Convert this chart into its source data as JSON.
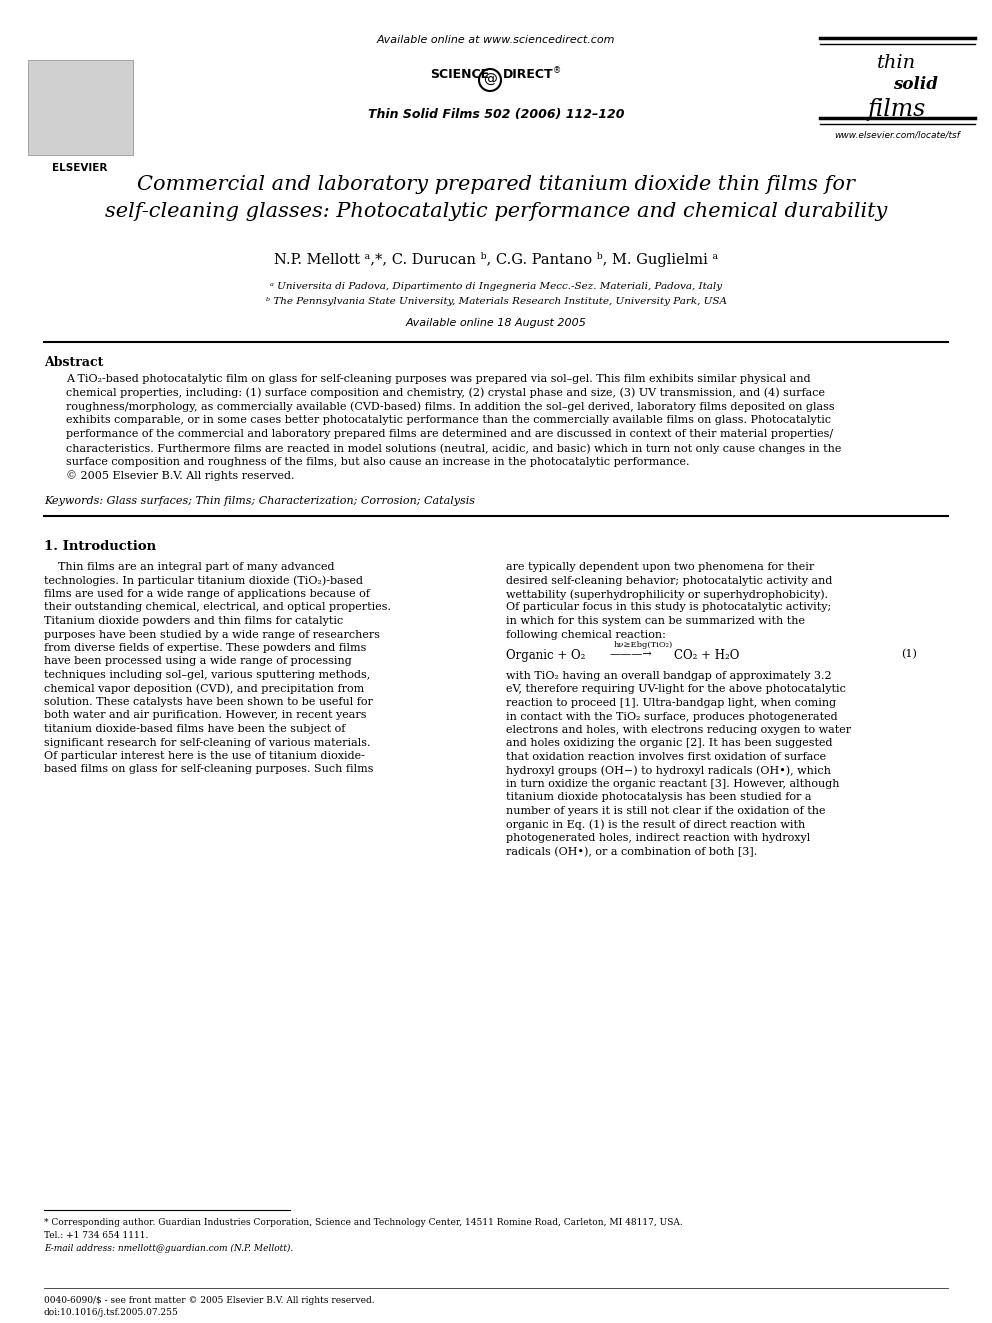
{
  "bg_color": "#ffffff",
  "header_url": "Available online at www.sciencedirect.com",
  "journal_ref": "Thin Solid Films 502 (2006) 112–120",
  "title_line1": "Commercial and laboratory prepared titanium dioxide thin films for",
  "title_line2": "self-cleaning glasses: Photocatalytic performance and chemical durability",
  "authors": "N.P. Mellott ᵃ,*, C. Durucan ᵇ, C.G. Pantano ᵇ, M. Guglielmi ᵃ",
  "affil1": "ᵃ Universita di Padova, Dipartimento di Ingegneria Mecc.-Sez. Materiali, Padova, Italy",
  "affil2": "ᵇ The Pennsylvania State University, Materials Research Institute, University Park, USA",
  "available_online": "Available online 18 August 2005",
  "abstract_title": "Abstract",
  "abstract_lines": [
    "A TiO₂-based photocatalytic film on glass for self-cleaning purposes was prepared via sol–gel. This film exhibits similar physical and",
    "chemical properties, including: (1) surface composition and chemistry, (2) crystal phase and size, (3) UV transmission, and (4) surface",
    "roughness/morphology, as commercially available (CVD-based) films. In addition the sol–gel derived, laboratory films deposited on glass",
    "exhibits comparable, or in some cases better photocatalytic performance than the commercially available films on glass. Photocatalytic",
    "performance of the commercial and laboratory prepared films are determined and are discussed in context of their material properties/",
    "characteristics. Furthermore films are reacted in model solutions (neutral, acidic, and basic) which in turn not only cause changes in the",
    "surface composition and roughness of the films, but also cause an increase in the photocatalytic performance.",
    "© 2005 Elsevier B.V. All rights reserved."
  ],
  "keywords": "Keywords: Glass surfaces; Thin films; Characterization; Corrosion; Catalysis",
  "section1_title": "1. Introduction",
  "intro_col1_lines": [
    "    Thin films are an integral part of many advanced",
    "technologies. In particular titanium dioxide (TiO₂)-based",
    "films are used for a wide range of applications because of",
    "their outstanding chemical, electrical, and optical properties.",
    "Titanium dioxide powders and thin films for catalytic",
    "purposes have been studied by a wide range of researchers",
    "from diverse fields of expertise. These powders and films",
    "have been processed using a wide range of processing",
    "techniques including sol–gel, various sputtering methods,",
    "chemical vapor deposition (CVD), and precipitation from",
    "solution. These catalysts have been shown to be useful for",
    "both water and air purification. However, in recent years",
    "titanium dioxide-based films have been the subject of",
    "significant research for self-cleaning of various materials.",
    "Of particular interest here is the use of titanium dioxide-",
    "based films on glass for self-cleaning purposes. Such films"
  ],
  "intro_col2_lines_a": [
    "are typically dependent upon two phenomena for their",
    "desired self-cleaning behavior; photocatalytic activity and",
    "wettability (superhydrophilicity or superhydrophobicity).",
    "Of particular focus in this study is photocatalytic activity;",
    "in which for this system can be summarized with the",
    "following chemical reaction:"
  ],
  "eq_left": "Organic + O₂",
  "eq_arrow": "———→",
  "eq_above": "hν≥Ebg(TiO₂)",
  "eq_right": "CO₂ + H₂O",
  "eq_number": "(1)",
  "intro_col2_lines_b": [
    "with TiO₂ having an overall bandgap of approximately 3.2",
    "eV, therefore requiring UV-light for the above photocatalytic",
    "reaction to proceed [1]. Ultra-bandgap light, when coming",
    "in contact with the TiO₂ surface, produces photogenerated",
    "electrons and holes, with electrons reducing oxygen to water",
    "and holes oxidizing the organic [2]. It has been suggested",
    "that oxidation reaction involves first oxidation of surface",
    "hydroxyl groups (OH−) to hydroxyl radicals (OH•), which",
    "in turn oxidize the organic reactant [3]. However, although",
    "titanium dioxide photocatalysis has been studied for a",
    "number of years it is still not clear if the oxidation of the",
    "organic in Eq. (1) is the result of direct reaction with",
    "photogenerated holes, indirect reaction with hydroxyl",
    "radicals (OH•), or a combination of both [3]."
  ],
  "footnote_line": "* Corresponding author. Guardian Industries Corporation, Science and Technology Center, 14511 Romine Road, Carleton, MI 48117, USA.",
  "footnote_tel": "Tel.: +1 734 654 1111.",
  "footnote_email": "E-mail address: nmellott@guardian.com (N.P. Mellott).",
  "footer_line1": "0040-6090/$ - see front matter © 2005 Elsevier B.V. All rights reserved.",
  "footer_line2": "doi:10.1016/j.tsf.2005.07.255"
}
